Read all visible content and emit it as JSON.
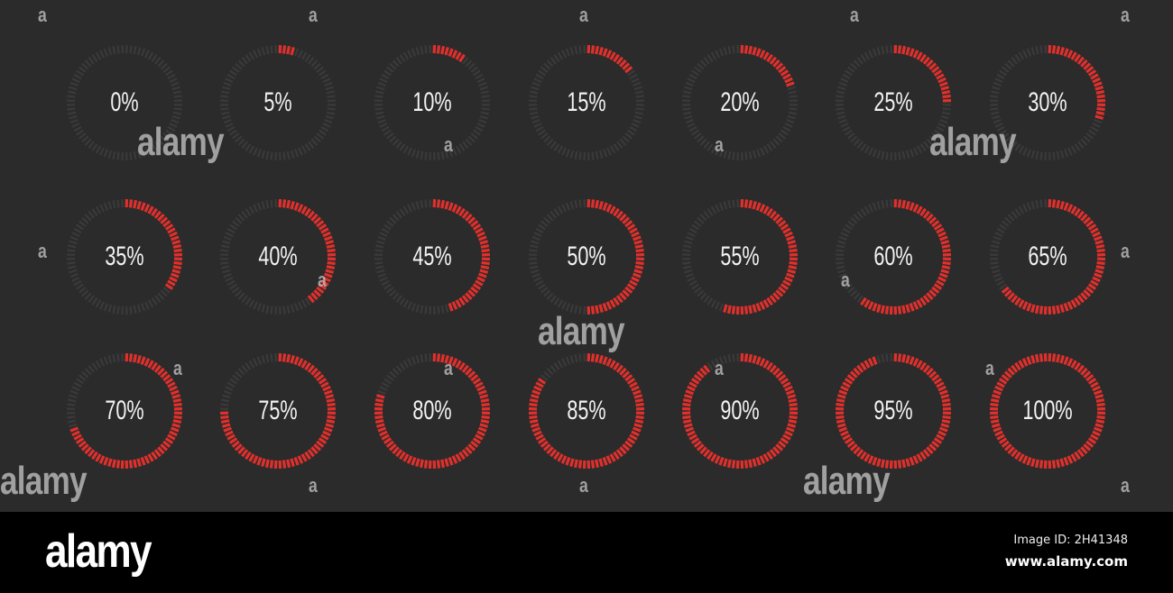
{
  "colors": {
    "background": "#2b2b2b",
    "track": "#3a3a3a",
    "fill": "#e0302c",
    "text": "#f2f2f2"
  },
  "gauges": [
    {
      "label": "0%",
      "value": 0
    },
    {
      "label": "5%",
      "value": 5
    },
    {
      "label": "10%",
      "value": 10
    },
    {
      "label": "15%",
      "value": 15
    },
    {
      "label": "20%",
      "value": 20
    },
    {
      "label": "25%",
      "value": 25
    },
    {
      "label": "30%",
      "value": 30
    },
    {
      "label": "35%",
      "value": 35
    },
    {
      "label": "40%",
      "value": 40
    },
    {
      "label": "45%",
      "value": 45
    },
    {
      "label": "50%",
      "value": 50
    },
    {
      "label": "55%",
      "value": 55
    },
    {
      "label": "60%",
      "value": 60
    },
    {
      "label": "65%",
      "value": 65
    },
    {
      "label": "70%",
      "value": 70
    },
    {
      "label": "75%",
      "value": 75
    },
    {
      "label": "80%",
      "value": 80
    },
    {
      "label": "85%",
      "value": 85
    },
    {
      "label": "90%",
      "value": 90
    },
    {
      "label": "95%",
      "value": 95
    },
    {
      "label": "100%",
      "value": 100
    }
  ],
  "watermark": {
    "logo": "alamy",
    "mark": "a"
  },
  "footer": {
    "logo": "alamy",
    "image_id": "Image ID: 2H41348",
    "site": "www.alamy.com"
  }
}
